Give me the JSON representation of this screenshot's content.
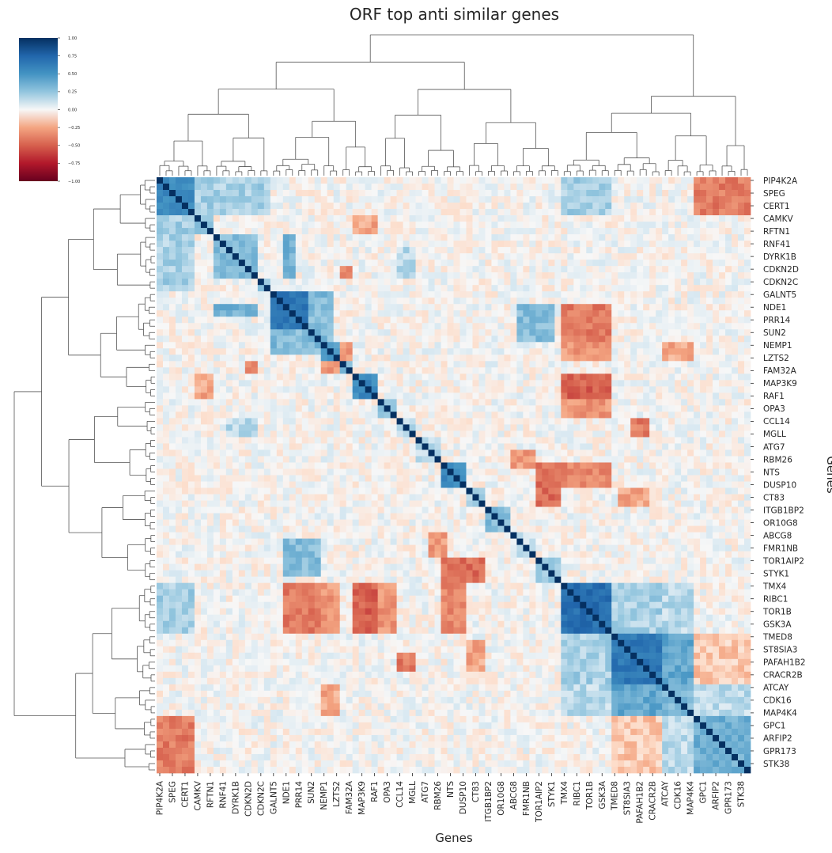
{
  "chart_data": {
    "type": "heatmap",
    "title": "ORF top anti similar genes",
    "xlabel": "Genes",
    "ylabel": "Genes",
    "colormap": "RdBu",
    "vmin": -1.0,
    "vmax": 1.0,
    "colorbar_ticks": [
      "1.00",
      "0.75",
      "0.50",
      "0.25",
      "0.00",
      "−0.25",
      "−0.50",
      "−0.75",
      "−1.00"
    ],
    "tick_labels": [
      "PIP4K2A",
      "SPEG",
      "CERT1",
      "CAMKV",
      "RFTN1",
      "RNF41",
      "DYRK1B",
      "CDKN2D",
      "CDKN2C",
      "GALNT5",
      "NDE1",
      "PRR14",
      "SUN2",
      "NEMP1",
      "LZTS2",
      "FAM32A",
      "MAP3K9",
      "RAF1",
      "OPA3",
      "CCL14",
      "MGLL",
      "ATG7",
      "RBM26",
      "NTS",
      "DUSP10",
      "CT83",
      "ITGB1BP2",
      "OR10G8",
      "ABCG8",
      "FMR1NB",
      "TOR1AIP2",
      "STYK1",
      "TMX4",
      "RIBC1",
      "TOR1B",
      "GSK3A",
      "TMED8",
      "ST8SIA3",
      "PAFAH1B2",
      "CRACR2B",
      "ATCAY",
      "CDK16",
      "MAP4K4",
      "GPC1",
      "ARFIP2",
      "GPR173",
      "STK38"
    ],
    "n_rows": 94,
    "n_cols": 94,
    "diagonal": 1.0,
    "blocks": [
      {
        "rows": [
          0,
          6
        ],
        "value": 0.55
      },
      {
        "rows": [
          6,
          9
        ],
        "value": 0.25
      },
      {
        "rows": [
          9,
          16
        ],
        "value": 0.3
      },
      {
        "rows": [
          16,
          18
        ],
        "value": 0.25
      },
      {
        "rows": [
          18,
          26
        ],
        "value": 0.65
      },
      {
        "rows": [
          26,
          29
        ],
        "value": 0.45
      },
      {
        "rows": [
          29,
          31
        ],
        "value": 0.3
      },
      {
        "rows": [
          31,
          35
        ],
        "value": 0.55
      },
      {
        "rows": [
          35,
          38
        ],
        "value": 0.3
      },
      {
        "rows": [
          38,
          41
        ],
        "value": 0.15
      },
      {
        "rows": [
          41,
          45
        ],
        "value": 0.15
      },
      {
        "rows": [
          45,
          49
        ],
        "value": 0.55
      },
      {
        "rows": [
          49,
          52
        ],
        "value": 0.2
      },
      {
        "rows": [
          52,
          56
        ],
        "value": 0.3
      },
      {
        "rows": [
          56,
          60
        ],
        "value": 0.1
      },
      {
        "rows": [
          60,
          64
        ],
        "value": 0.25
      },
      {
        "rows": [
          64,
          72
        ],
        "value": 0.7
      },
      {
        "rows": [
          72,
          80
        ],
        "value": 0.65
      },
      {
        "rows": [
          80,
          85
        ],
        "value": 0.3
      },
      {
        "rows": [
          85,
          89
        ],
        "value": 0.35
      },
      {
        "rows": [
          89,
          92
        ],
        "value": 0.15
      },
      {
        "rows": [
          92,
          94
        ],
        "value": 0.25
      }
    ],
    "cross_blocks": [
      {
        "rows": [
          0,
          6
        ],
        "cols": [
          6,
          18
        ],
        "value": 0.2
      },
      {
        "rows": [
          0,
          6
        ],
        "cols": [
          64,
          72
        ],
        "value": 0.2
      },
      {
        "rows": [
          0,
          6
        ],
        "cols": [
          85,
          94
        ],
        "value": -0.4
      },
      {
        "rows": [
          9,
          16
        ],
        "cols": [
          20,
          22
        ],
        "value": 0.35
      },
      {
        "rows": [
          11,
          16
        ],
        "cols": [
          38,
          41
        ],
        "value": 0.15
      },
      {
        "rows": [
          18,
          26
        ],
        "cols": [
          24,
          28
        ],
        "value": 0.3
      },
      {
        "rows": [
          20,
          26
        ],
        "cols": [
          57,
          63
        ],
        "value": 0.3
      },
      {
        "rows": [
          20,
          26
        ],
        "cols": [
          64,
          72
        ],
        "value": -0.4
      },
      {
        "rows": [
          26,
          29
        ],
        "cols": [
          64,
          72
        ],
        "value": -0.3
      },
      {
        "rows": [
          26,
          29
        ],
        "cols": [
          80,
          85
        ],
        "value": -0.25
      },
      {
        "rows": [
          29,
          31
        ],
        "cols": [
          26,
          29
        ],
        "value": -0.3
      },
      {
        "rows": [
          29,
          31
        ],
        "cols": [
          14,
          16
        ],
        "value": -0.35
      },
      {
        "rows": [
          31,
          35
        ],
        "cols": [
          6,
          9
        ],
        "value": -0.25
      },
      {
        "rows": [
          31,
          35
        ],
        "cols": [
          64,
          72
        ],
        "value": -0.5
      },
      {
        "rows": [
          35,
          38
        ],
        "cols": [
          64,
          72
        ],
        "value": -0.3
      },
      {
        "rows": [
          38,
          41
        ],
        "cols": [
          75,
          78
        ],
        "value": -0.4
      },
      {
        "rows": [
          45,
          49
        ],
        "cols": [
          64,
          72
        ],
        "value": -0.35
      },
      {
        "rows": [
          49,
          52
        ],
        "cols": [
          73,
          78
        ],
        "value": -0.25
      },
      {
        "rows": [
          56,
          60
        ],
        "cols": [
          43,
          46
        ],
        "value": -0.3
      },
      {
        "rows": [
          60,
          64
        ],
        "cols": [
          45,
          52
        ],
        "value": -0.45
      },
      {
        "rows": [
          64,
          72
        ],
        "cols": [
          72,
          80
        ],
        "value": 0.2
      },
      {
        "rows": [
          64,
          72
        ],
        "cols": [
          80,
          85
        ],
        "value": 0.15
      },
      {
        "rows": [
          72,
          80
        ],
        "cols": [
          80,
          85
        ],
        "value": 0.4
      },
      {
        "rows": [
          72,
          80
        ],
        "cols": [
          85,
          94
        ],
        "value": -0.15
      },
      {
        "rows": [
          80,
          85
        ],
        "cols": [
          85,
          94
        ],
        "value": 0.15
      },
      {
        "rows": [
          85,
          94
        ],
        "cols": [
          89,
          94
        ],
        "value": 0.35
      }
    ]
  }
}
